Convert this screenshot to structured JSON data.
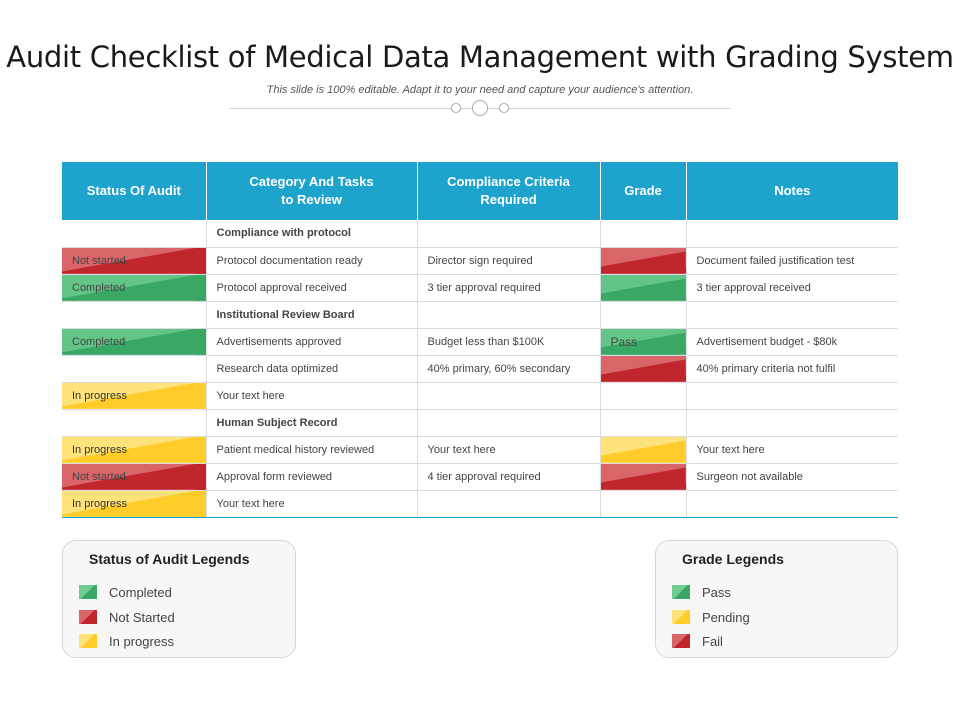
{
  "title": "Audit Checklist of Medical Data Management with Grading System",
  "subtitle": "This slide is 100% editable. Adapt it to your need and capture your audience's attention.",
  "table": {
    "headers": [
      "Status Of Audit",
      "Category And Tasks to Review",
      "Compliance Criteria Required",
      "Grade",
      "Notes"
    ],
    "rows": [
      {
        "type": "section",
        "task": "Compliance  with protocol"
      },
      {
        "status": "Not started",
        "status_color": "red",
        "task": "Protocol documentation ready",
        "criteria": "Director sign required",
        "grade_color": "red",
        "grade": "",
        "notes": "Document failed justification test"
      },
      {
        "status": "Completed",
        "status_color": "green",
        "task": "Protocol approval received",
        "criteria": "3 tier approval required",
        "grade_color": "green",
        "grade": "",
        "notes": "3 tier approval received"
      },
      {
        "type": "section",
        "task": "Institutional  Review Board"
      },
      {
        "status": "Completed",
        "status_color": "green",
        "task": "Advertisements approved",
        "criteria": "Budget  less than $100K",
        "grade_color": "green",
        "grade": "Pass",
        "notes": "Advertisement budget - $80k"
      },
      {
        "status": "",
        "status_color": "",
        "task": "Research data optimized",
        "criteria": "40% primary, 60% secondary",
        "grade_color": "red",
        "grade": "",
        "notes": "40% primary criteria not fulfil"
      },
      {
        "status": "In progress",
        "status_color": "yellow",
        "task": "Your text here",
        "criteria": "",
        "grade_color": "",
        "grade": "",
        "notes": ""
      },
      {
        "type": "section",
        "task": "Human Subject Record"
      },
      {
        "status": "In progress",
        "status_color": "yellow",
        "task": "Patient medical history reviewed",
        "criteria": "Your text here",
        "grade_color": "yellow",
        "grade": "",
        "notes": "Your text here"
      },
      {
        "status": "Not started",
        "status_color": "red",
        "task": "Approval form reviewed",
        "criteria": "4 tier approval required",
        "grade_color": "red",
        "grade": "",
        "notes": "Surgeon not available"
      },
      {
        "status": "In progress",
        "status_color": "yellow",
        "task": "Your text here",
        "criteria": "",
        "grade_color": "",
        "grade": "",
        "notes": ""
      }
    ]
  },
  "status_legend": {
    "title": "Status of Audit  Legends",
    "items": [
      {
        "label": "Completed",
        "color": "green"
      },
      {
        "label": "Not Started",
        "color": "red"
      },
      {
        "label": "In progress",
        "color": "yellow"
      }
    ]
  },
  "grade_legend": {
    "title": "Grade Legends",
    "items": [
      {
        "label": "Pass",
        "color": "green"
      },
      {
        "label": "Pending",
        "color": "yellow"
      },
      {
        "label": "Fail",
        "color": "red"
      }
    ]
  },
  "colors": {
    "header": "#1ea3cc",
    "green": "#3aa865",
    "red": "#c0272d",
    "yellow": "#ffcc29"
  }
}
